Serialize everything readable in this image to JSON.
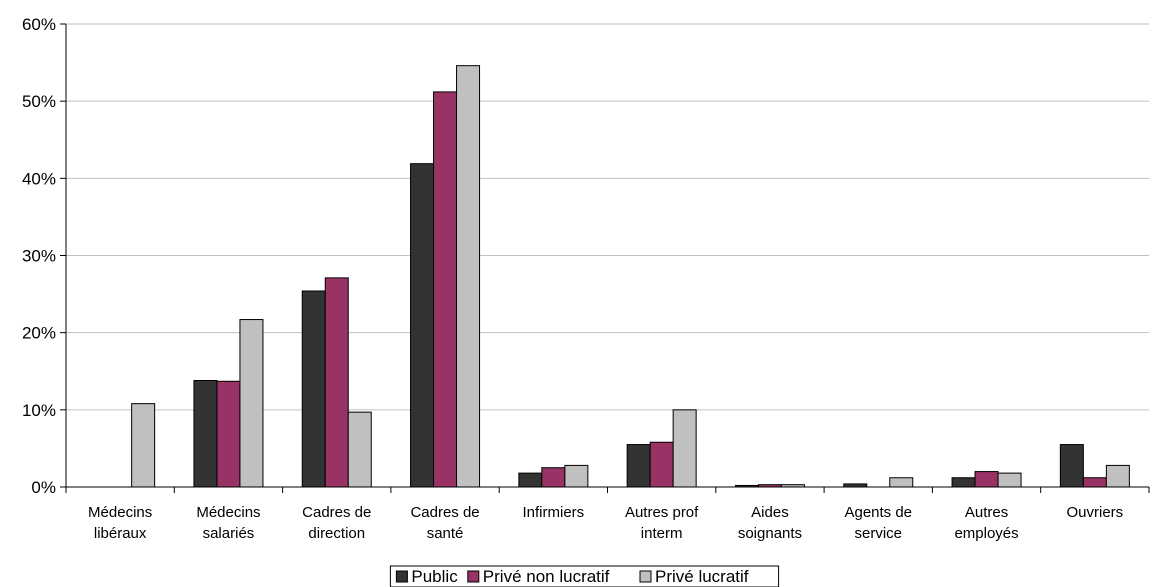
{
  "chart_data": {
    "type": "bar",
    "title": "",
    "xlabel": "",
    "ylabel": "",
    "ylim": [
      0,
      0.6
    ],
    "yticks": [
      0,
      0.1,
      0.2,
      0.3,
      0.4,
      0.5,
      0.6
    ],
    "yticklabels": [
      "0%",
      "10%",
      "20%",
      "30%",
      "40%",
      "50%",
      "60%"
    ],
    "grid": true,
    "legend_position": "bottom",
    "categories": [
      [
        "Médecins",
        "libéraux"
      ],
      [
        "Médecins",
        "salariés"
      ],
      [
        "Cadres de",
        "direction"
      ],
      [
        "Cadres de",
        "santé"
      ],
      [
        "Infirmiers"
      ],
      [
        "Autres prof",
        "interm"
      ],
      [
        "Aides",
        "soignants"
      ],
      [
        "Agents de",
        "service"
      ],
      [
        "Autres",
        "employés"
      ],
      [
        "Ouvriers"
      ]
    ],
    "series": [
      {
        "name": "Public",
        "color": "#333333",
        "values": [
          0,
          0.138,
          0.254,
          0.419,
          0.018,
          0.055,
          0.002,
          0.004,
          0.012,
          0.055
        ]
      },
      {
        "name": "Privé non lucratif",
        "color": "#993366",
        "values": [
          0,
          0.137,
          0.271,
          0.512,
          0.025,
          0.058,
          0.003,
          0,
          0.02,
          0.012
        ]
      },
      {
        "name": "Privé lucratif",
        "color": "#C0C0C0",
        "values": [
          0.108,
          0.217,
          0.097,
          0.546,
          0.028,
          0.1,
          0.003,
          0.012,
          0.018,
          0.028
        ]
      }
    ]
  }
}
